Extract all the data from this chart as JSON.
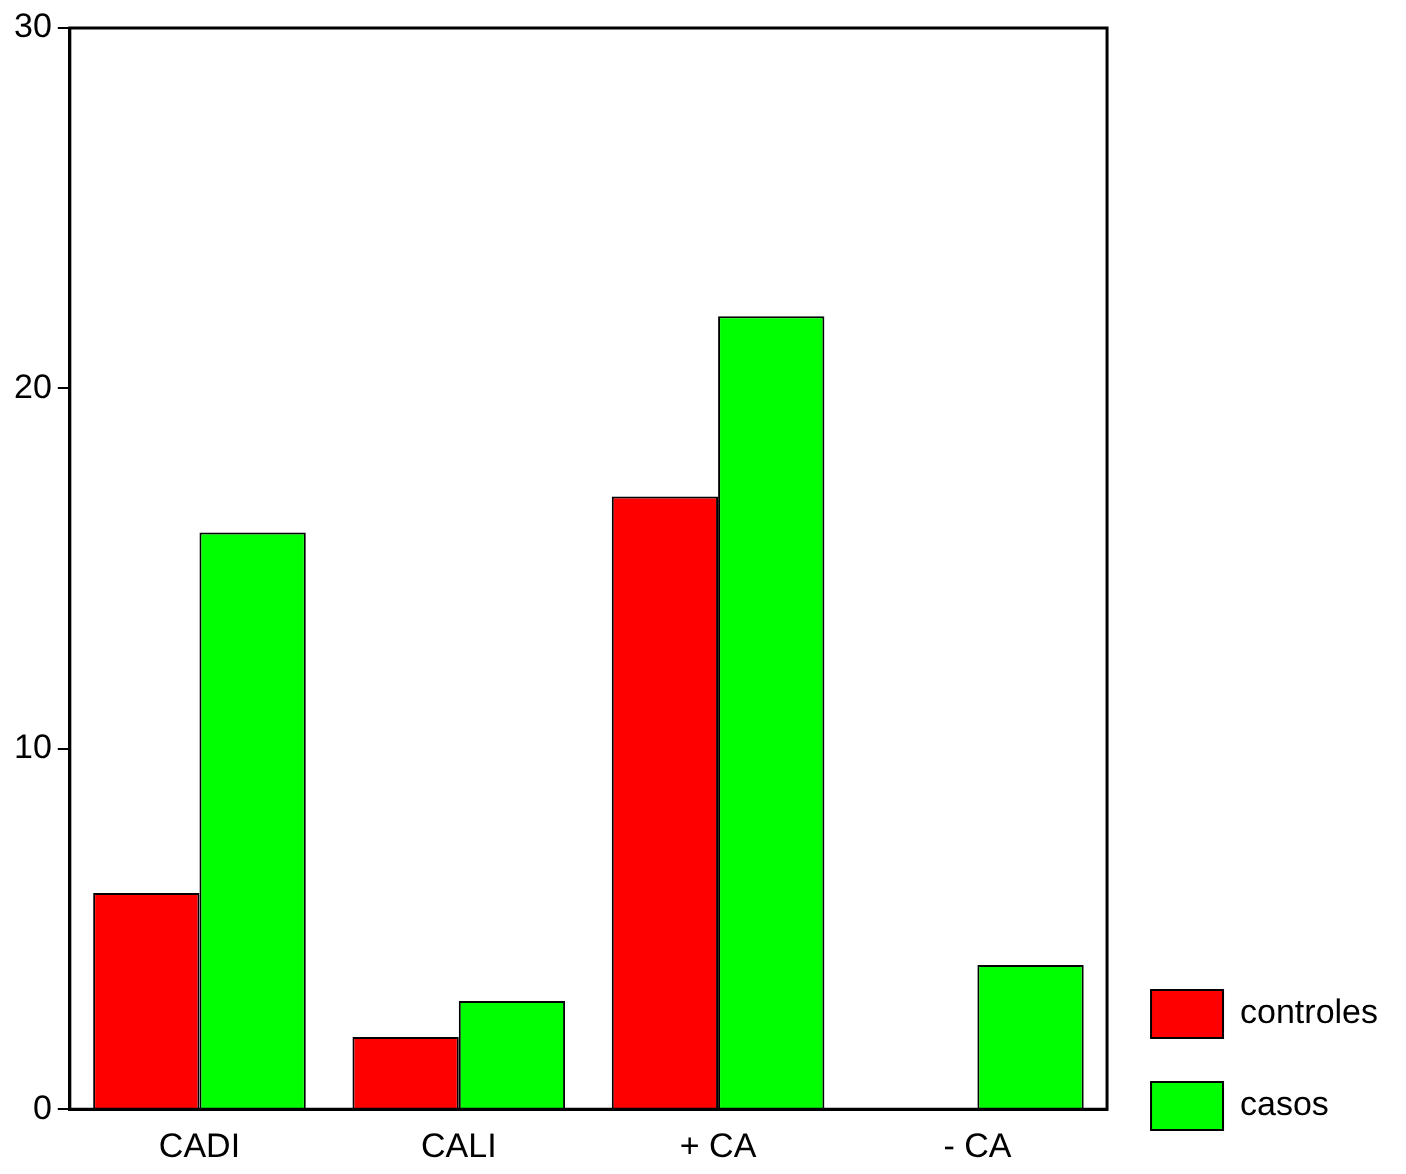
{
  "chart_data": {
    "type": "bar",
    "categories": [
      "CADI",
      "CALI",
      "+ CA",
      "- CA"
    ],
    "series": [
      {
        "name": "controles",
        "color": "#ff0000",
        "values": [
          6,
          2,
          17,
          0
        ]
      },
      {
        "name": "casos",
        "color": "#00ff00",
        "values": [
          16,
          3,
          22,
          4
        ]
      }
    ],
    "ylim": [
      0,
      30
    ],
    "yticks": [
      0,
      10,
      20,
      30
    ],
    "grid": false,
    "legend": "bottom right"
  }
}
